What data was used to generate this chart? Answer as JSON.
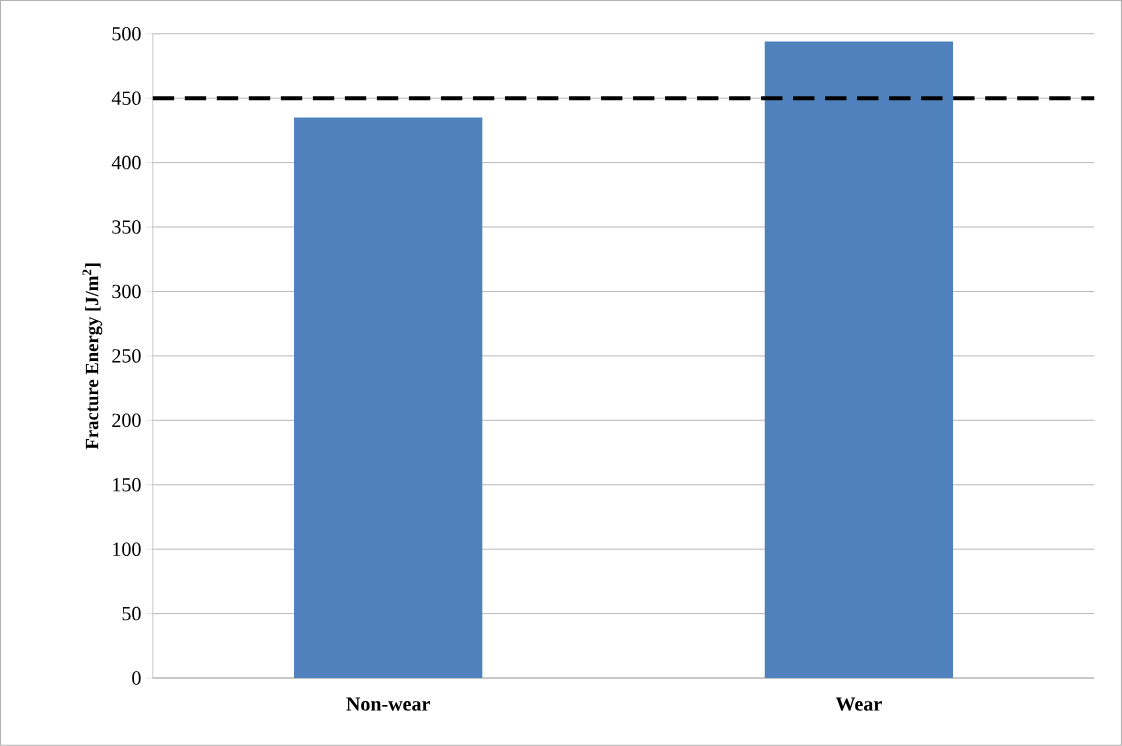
{
  "chart_data": {
    "type": "bar",
    "ylabel": "Fracture Energy [J/m$^{2}$]",
    "categories": [
      "Non-wear",
      "Wear"
    ],
    "values": [
      435,
      494
    ],
    "color": "#4f81bd",
    "ylim": [
      0,
      500
    ],
    "yticks": [
      0,
      50,
      100,
      150,
      200,
      250,
      300,
      350,
      400,
      450,
      500
    ],
    "grid": "y",
    "ref_lines": [
      {
        "axis": "y",
        "value": 450,
        "color": "#000000",
        "line_style": "dashed"
      }
    ]
  }
}
